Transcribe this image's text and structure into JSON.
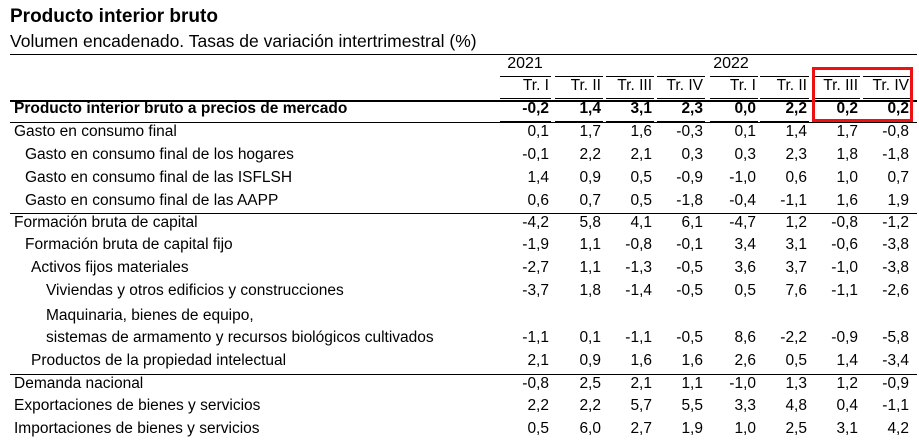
{
  "title": "Producto interior bruto",
  "subtitle": "Volumen encadenado. Tasas de variación intertrimestral (%)",
  "years": [
    "2021",
    "2022"
  ],
  "quarters": [
    "Tr. I",
    "Tr. II",
    "Tr. III",
    "Tr. IV",
    "Tr. I",
    "Tr. II",
    "Tr. III",
    "Tr. IV"
  ],
  "rows": [
    {
      "label": "Producto interior bruto a precios de mercado",
      "values": [
        "-0,2",
        "1,4",
        "3,1",
        "2,3",
        "0,0",
        "2,2",
        "0,2",
        "0,2"
      ]
    },
    {
      "label": "Gasto en consumo final",
      "values": [
        "0,1",
        "1,7",
        "1,6",
        "-0,3",
        "0,1",
        "1,4",
        "1,7",
        "-0,8"
      ]
    },
    {
      "label": "Gasto en consumo final de los hogares",
      "values": [
        "-0,1",
        "2,2",
        "2,1",
        "0,3",
        "0,3",
        "2,3",
        "1,8",
        "-1,8"
      ]
    },
    {
      "label": "Gasto en consumo final de las ISFLSH",
      "values": [
        "1,4",
        "0,9",
        "0,5",
        "-0,9",
        "-1,0",
        "0,6",
        "1,0",
        "0,7"
      ]
    },
    {
      "label": "Gasto en consumo final de las AAPP",
      "values": [
        "0,6",
        "0,7",
        "0,5",
        "-1,8",
        "-0,4",
        "-1,1",
        "1,6",
        "1,9"
      ]
    },
    {
      "label": "Formación bruta de capital",
      "values": [
        "-4,2",
        "5,8",
        "4,1",
        "6,1",
        "-4,7",
        "1,2",
        "-0,8",
        "-1,2"
      ]
    },
    {
      "label": "Formación bruta de capital fijo",
      "values": [
        "-1,9",
        "1,1",
        "-0,8",
        "-0,1",
        "3,4",
        "3,1",
        "-0,6",
        "-3,8"
      ]
    },
    {
      "label": "Activos fijos  materiales",
      "values": [
        "-2,7",
        "1,1",
        "-1,3",
        "-0,5",
        "3,6",
        "3,7",
        "-1,0",
        "-3,8"
      ]
    },
    {
      "label": "Viviendas y otros edificios y construcciones",
      "values": [
        "-3,7",
        "1,8",
        "-1,4",
        "-0,5",
        "0,5",
        "7,6",
        "-1,1",
        "-2,6"
      ]
    },
    {
      "label": "Maquinaria, bienes de equipo,",
      "label2": "sistemas de armamento y recursos biológicos cultivados",
      "values": [
        "-1,1",
        "0,1",
        "-1,1",
        "-0,5",
        "8,6",
        "-2,2",
        "-0,9",
        "-5,8"
      ]
    },
    {
      "label": "Productos de la propiedad intelectual",
      "values": [
        "2,1",
        "0,9",
        "1,6",
        "1,6",
        "2,6",
        "0,5",
        "1,4",
        "-3,4"
      ]
    },
    {
      "label": "Demanda nacional",
      "values": [
        "-0,8",
        "2,5",
        "2,1",
        "1,1",
        "-1,0",
        "1,3",
        "1,2",
        "-0,9"
      ]
    },
    {
      "label": "Exportaciones de bienes y servicios",
      "values": [
        "2,2",
        "2,2",
        "5,7",
        "5,5",
        "3,3",
        "4,8",
        "0,4",
        "-1,1"
      ]
    },
    {
      "label": "Importaciones de bienes y servicios",
      "values": [
        "0,5",
        "6,0",
        "2,7",
        "1,9",
        "1,0",
        "2,5",
        "3,1",
        "4,2"
      ]
    }
  ]
}
